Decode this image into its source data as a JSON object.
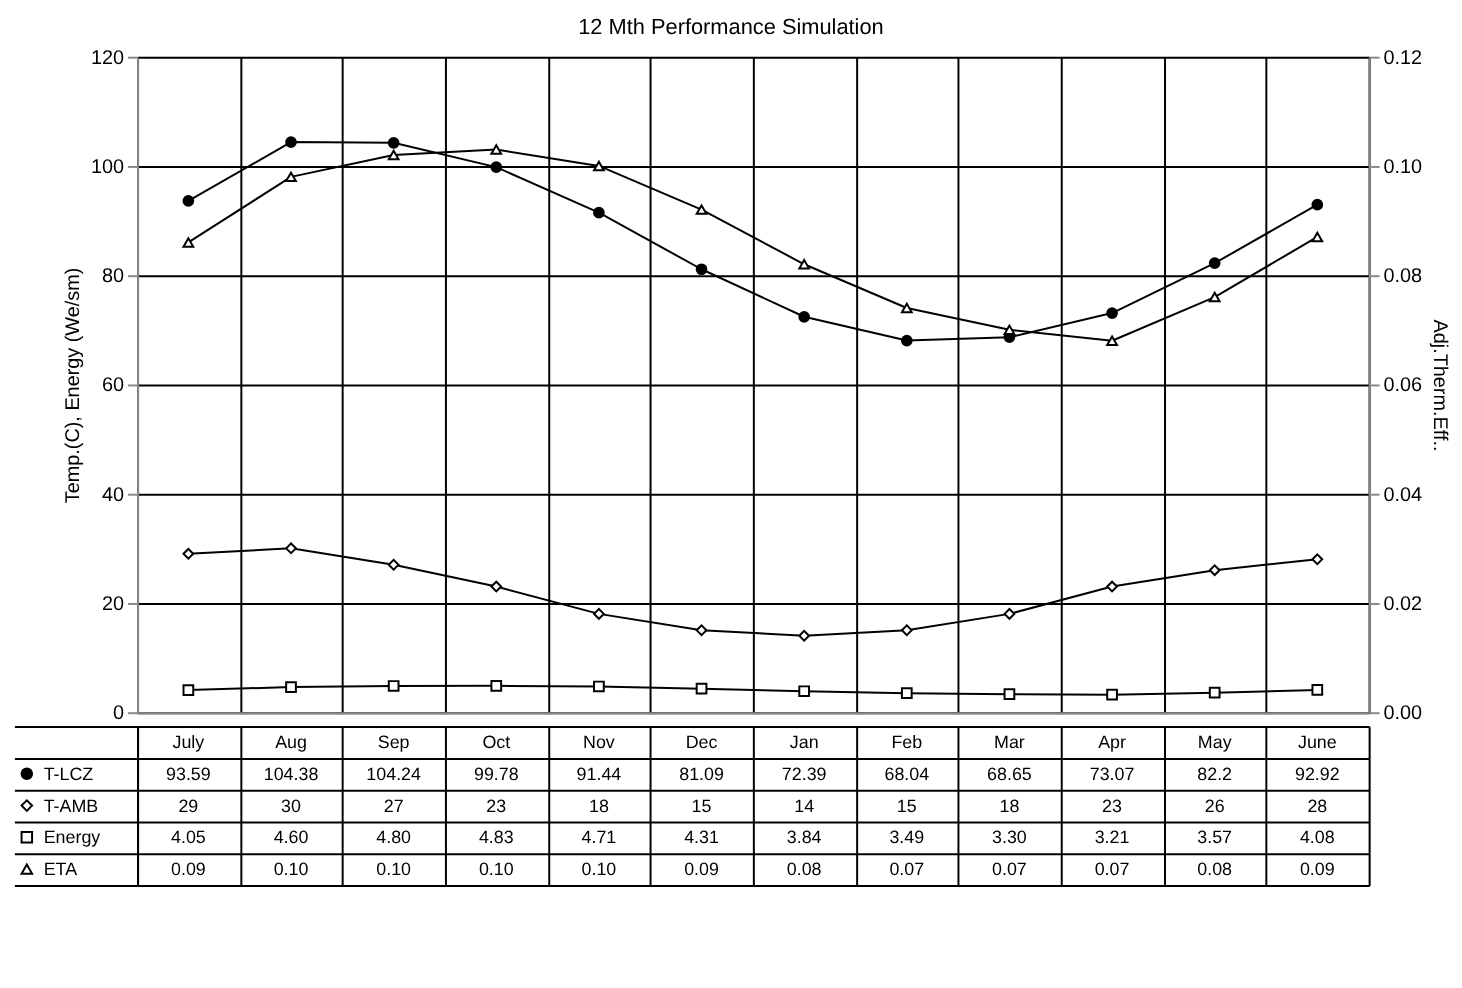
{
  "chart_data": {
    "type": "line",
    "title": "12 Mth Performance Simulation",
    "ylabel": "Temp.(C), Energy (We/sm)",
    "y2label": "Adj.Therm.Eff..",
    "categories": [
      "July",
      "Aug",
      "Sep",
      "Oct",
      "Nov",
      "Dec",
      "Jan",
      "Feb",
      "Mar",
      "Apr",
      "May",
      "June"
    ],
    "series": [
      {
        "name": "T-LCZ",
        "color": "#000000",
        "marker": "circle",
        "values": [
          93.59,
          104.38,
          104.24,
          99.78,
          91.44,
          81.09,
          72.39,
          68.04,
          68.65,
          73.07,
          82.2,
          92.92
        ],
        "value_labels": [
          "93.59",
          "104.38",
          "104.24",
          "99.78",
          "91.44",
          "81.09",
          "72.39",
          "68.04",
          "68.65",
          "73.07",
          "82.2",
          "92.92"
        ]
      },
      {
        "name": "T-AMB",
        "color": "#000000",
        "marker": "diamond",
        "values": [
          29,
          30,
          27,
          23,
          18,
          15,
          14,
          15,
          18,
          23,
          26,
          28
        ],
        "value_labels": [
          "29",
          "30",
          "27",
          "23",
          "18",
          "15",
          "14",
          "15",
          "18",
          "23",
          "26",
          "28"
        ]
      },
      {
        "name": "Energy",
        "color": "#000000",
        "marker": "square",
        "values": [
          4.05,
          4.6,
          4.8,
          4.83,
          4.71,
          4.31,
          3.84,
          3.49,
          3.3,
          3.21,
          3.57,
          4.08
        ],
        "value_labels": [
          "4.05",
          "4.60",
          "4.80",
          "4.83",
          "4.71",
          "4.31",
          "3.84",
          "3.49",
          "3.30",
          "3.21",
          "3.57",
          "4.08"
        ]
      },
      {
        "name": "ETA",
        "color": "#000000",
        "marker": "triangle",
        "axis": "y2",
        "values": [
          0.086,
          0.098,
          0.102,
          0.103,
          0.1,
          0.092,
          0.082,
          0.074,
          0.07,
          0.068,
          0.076,
          0.087
        ],
        "value_labels": [
          "0.09",
          "0.10",
          "0.10",
          "0.10",
          "0.10",
          "0.09",
          "0.08",
          "0.07",
          "0.07",
          "0.07",
          "0.08",
          "0.09"
        ]
      }
    ],
    "ylim": [
      0,
      120
    ],
    "yticks": [
      0,
      20,
      40,
      60,
      80,
      100,
      120
    ],
    "y2lim": [
      0,
      0.12
    ],
    "y2ticks": [
      {
        "value": 0,
        "label": "0.00"
      },
      {
        "value": 0.02,
        "label": "0.02"
      },
      {
        "value": 0.04,
        "label": "0.04"
      },
      {
        "value": 0.06,
        "label": "0.06"
      },
      {
        "value": 0.08,
        "label": "0.08"
      },
      {
        "value": 0.1,
        "label": "0.10"
      },
      {
        "value": 0.12,
        "label": "0.12"
      }
    ],
    "grid": true,
    "legend": "bottom left"
  }
}
